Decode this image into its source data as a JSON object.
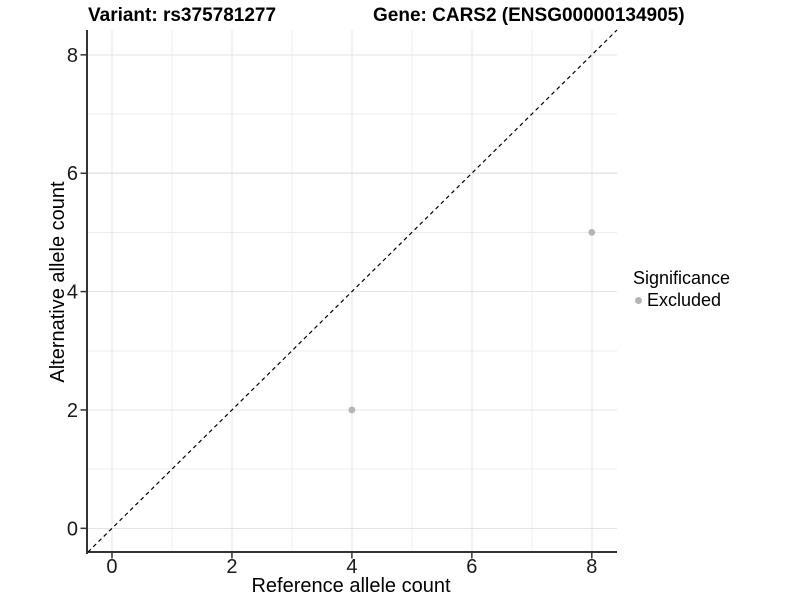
{
  "titles": {
    "left": "Variant: rs375781277",
    "right": "Gene: CARS2 (ENSG00000134905)"
  },
  "chart_data": {
    "type": "scatter",
    "title_left": "Variant: rs375781277",
    "title_right": "Gene: CARS2 (ENSG00000134905)",
    "xlabel": "Reference allele count",
    "ylabel": "Alternative allele count",
    "xlim": [
      -0.4,
      8.42
    ],
    "ylim": [
      -0.4,
      8.42
    ],
    "x_major_ticks": [
      0,
      2,
      4,
      6,
      8
    ],
    "y_major_ticks": [
      0,
      2,
      4,
      6,
      8
    ],
    "x_minor_gridlines": [
      1,
      3,
      5,
      7
    ],
    "y_minor_gridlines": [
      1,
      3,
      5,
      7
    ],
    "grid": "on",
    "identity_line": {
      "equation": "y = x",
      "style": "dashed",
      "color": "#000000",
      "from": [
        -0.4,
        -0.4
      ],
      "to": [
        8.42,
        8.42
      ]
    },
    "series": [
      {
        "name": "Excluded",
        "color": "#b5b5b5",
        "points": [
          {
            "x": 4,
            "y": 2
          },
          {
            "x": 8,
            "y": 5
          }
        ]
      }
    ],
    "legend": {
      "title": "Significance",
      "position": "right",
      "items": [
        {
          "label": "Excluded",
          "color": "#b5b5b5"
        }
      ]
    }
  },
  "colors": {
    "background": "#ffffff",
    "axis_line": "#333333",
    "tick_mark": "#333333",
    "grid_major": "#e5e5e5",
    "grid_minor": "#ededed",
    "tick_text": "#1a1a1a",
    "point": "#b5b5b5"
  }
}
